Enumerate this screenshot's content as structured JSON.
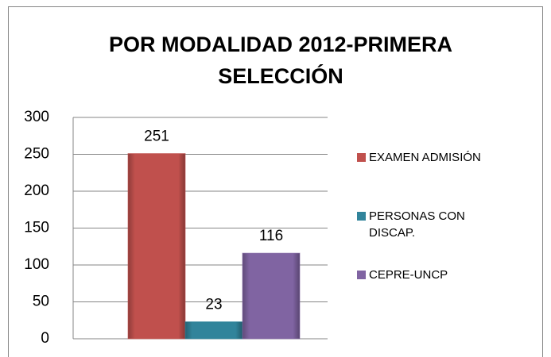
{
  "chart_data": {
    "type": "bar",
    "title": "POR MODALIDAD 2012-PRIMERA SELECCIÓN",
    "categories": [
      null
    ],
    "series": [
      {
        "name": "EXAMEN ADMISIÓN",
        "color": "#c0504d",
        "values": [
          251
        ]
      },
      {
        "name": "PERSONAS CON DISCAP.",
        "color": "#31849b",
        "values": [
          23
        ]
      },
      {
        "name": "CEPRE-UNCP",
        "color": "#8064a2",
        "values": [
          116
        ]
      }
    ],
    "ylim": [
      0,
      300
    ],
    "yticks": [
      0,
      50,
      100,
      150,
      200,
      250,
      300
    ],
    "grid": true,
    "legend": "right"
  }
}
